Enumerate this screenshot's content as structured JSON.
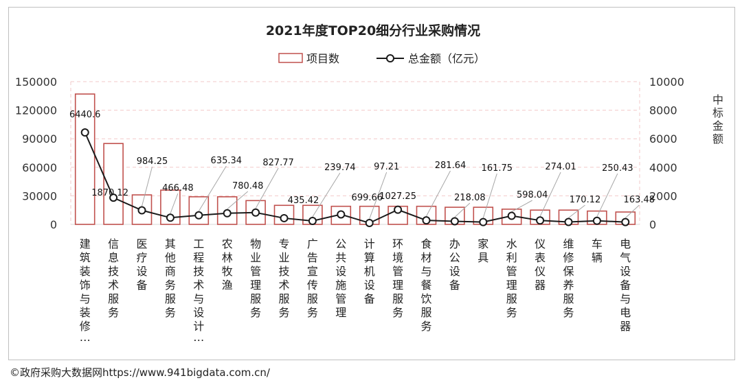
{
  "source_note": "©政府采购大数据网https://www.941bigdata.com.cn/",
  "chart_data": {
    "type": "bar+line",
    "title": "2021年度TOP20细分行业采购情况",
    "legend": {
      "placement": "top-center",
      "bar_label": "项目数",
      "line_label": "总金额（亿元）"
    },
    "y_left": {
      "ticks": [
        "150000",
        "120000",
        "90000",
        "60000",
        "30000",
        "0"
      ],
      "ylim": [
        0,
        150000
      ]
    },
    "y_right": {
      "ticks": [
        "10000",
        "8000",
        "6000",
        "4000",
        "2000",
        "0"
      ],
      "ylim": [
        0,
        10000
      ],
      "label": "中标金额"
    },
    "categories": [
      "建筑装饰与装修…",
      "信息技术服务",
      "医疗设备",
      "其他商务服务",
      "工程技术与设计…",
      "农林牧渔",
      "物业管理服务",
      "专业技术服务",
      "广告宣传服务",
      "公共设施管理",
      "计算机设备",
      "环境管理服务",
      "食材与餐饮服务",
      "办公设备",
      "家具",
      "水利管理服务",
      "仪表仪器",
      "维修保养服务",
      "车辆",
      "电气设备与电器"
    ],
    "series": [
      {
        "name": "项目数",
        "type": "bar",
        "values": [
          137000,
          85000,
          31000,
          36000,
          29000,
          29000,
          25000,
          20000,
          20000,
          19000,
          19000,
          19000,
          19000,
          18000,
          18000,
          16000,
          15000,
          15000,
          14000,
          13000
        ]
      },
      {
        "name": "总金额（亿元）",
        "type": "line",
        "values": [
          6440.6,
          1870.12,
          984.25,
          466.48,
          635.34,
          780.48,
          827.77,
          435.42,
          239.74,
          699.66,
          97.21,
          1027.25,
          281.64,
          218.08,
          161.75,
          598.04,
          274.01,
          170.12,
          250.43,
          163.48
        ]
      }
    ],
    "data_labels": [
      "6440.6",
      "1870.12",
      "984.25",
      "466.48",
      "635.34",
      "780.48",
      "827.77",
      "435.42",
      "239.74",
      "699.66",
      "97.21",
      "1027.25",
      "281.64",
      "218.08",
      "161.75",
      "598.04",
      "274.01",
      "170.12",
      "250.43",
      "163.48"
    ],
    "colors": {
      "bar_stroke": "#c0504d",
      "bar_fill": "#ffffff",
      "line": "#1a1a1a",
      "marker_fill": "#ffffff",
      "grid": "#f2c9c9",
      "leader": "#a6a6a6"
    },
    "grid": true
  }
}
